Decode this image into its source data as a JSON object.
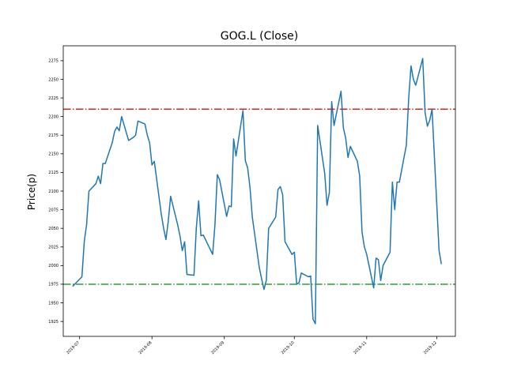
{
  "chart_data": {
    "type": "line",
    "title": "GOG.L (Close)",
    "xlabel": "",
    "ylabel": "Price(p)",
    "xlim": [
      "2019-06-24",
      "2019-12-09"
    ],
    "ylim": [
      1905,
      2295
    ],
    "yticks": [
      1925,
      1950,
      1975,
      2000,
      2025,
      2050,
      2075,
      2100,
      2125,
      2150,
      2175,
      2200,
      2225,
      2250,
      2275
    ],
    "xticks": [
      "2019-07",
      "2019-08",
      "2019-09",
      "2019-10",
      "2019-11",
      "2019-12"
    ],
    "grid": false,
    "series": [
      {
        "color": "#1f77b4",
        "x": [
          "2019-06-28",
          "2019-07-02",
          "2019-07-03",
          "2019-07-04",
          "2019-07-05",
          "2019-07-08",
          "2019-07-09",
          "2019-07-10",
          "2019-07-11",
          "2019-07-12",
          "2019-07-15",
          "2019-07-16",
          "2019-07-17",
          "2019-07-18",
          "2019-07-19",
          "2019-07-22",
          "2019-07-23",
          "2019-07-24",
          "2019-07-25",
          "2019-07-26",
          "2019-07-29",
          "2019-07-30",
          "2019-07-31",
          "2019-08-01",
          "2019-08-02",
          "2019-08-05",
          "2019-08-06",
          "2019-08-07",
          "2019-08-08",
          "2019-08-09",
          "2019-08-12",
          "2019-08-13",
          "2019-08-14",
          "2019-08-15",
          "2019-08-16",
          "2019-08-19",
          "2019-08-20",
          "2019-08-21",
          "2019-08-22",
          "2019-08-23",
          "2019-08-27",
          "2019-08-28",
          "2019-08-29",
          "2019-08-30",
          "2019-09-02",
          "2019-09-03",
          "2019-09-04",
          "2019-09-05",
          "2019-09-06",
          "2019-09-09",
          "2019-09-10",
          "2019-09-11",
          "2019-09-12",
          "2019-09-13",
          "2019-09-16",
          "2019-09-17",
          "2019-09-18",
          "2019-09-19",
          "2019-09-20",
          "2019-09-23",
          "2019-09-24",
          "2019-09-25",
          "2019-09-26",
          "2019-09-27",
          "2019-09-30",
          "2019-10-01",
          "2019-10-02",
          "2019-10-03",
          "2019-10-04",
          "2019-10-07",
          "2019-10-08",
          "2019-10-09",
          "2019-10-10",
          "2019-10-11",
          "2019-10-14",
          "2019-10-15",
          "2019-10-16",
          "2019-10-17",
          "2019-10-18",
          "2019-10-21",
          "2019-10-22",
          "2019-10-23",
          "2019-10-24",
          "2019-10-25",
          "2019-10-28",
          "2019-10-29",
          "2019-10-30",
          "2019-10-31",
          "2019-11-01",
          "2019-11-04",
          "2019-11-05",
          "2019-11-06",
          "2019-11-07",
          "2019-11-08",
          "2019-11-11",
          "2019-11-12",
          "2019-11-13",
          "2019-11-14",
          "2019-11-15",
          "2019-11-18",
          "2019-11-19",
          "2019-11-20",
          "2019-11-21",
          "2019-11-22",
          "2019-11-25",
          "2019-11-26",
          "2019-11-27",
          "2019-11-28",
          "2019-11-29",
          "2019-12-02",
          "2019-12-03"
        ],
        "y": [
          1972,
          1985,
          2032,
          2055,
          2100,
          2110,
          2120,
          2110,
          2137,
          2137,
          2165,
          2180,
          2186,
          2181,
          2200,
          2168,
          2170,
          2172,
          2175,
          2194,
          2190,
          2175,
          2165,
          2135,
          2140,
          2069,
          2050,
          2035,
          2060,
          2093,
          2055,
          2040,
          2020,
          2032,
          1988,
          1987,
          2050,
          2087,
          2040,
          2041,
          2015,
          2055,
          2122,
          2115,
          2066,
          2080,
          2079,
          2170,
          2147,
          2208,
          2141,
          2131,
          2105,
          2065,
          1997,
          1982,
          1968,
          1980,
          2050,
          2065,
          2102,
          2106,
          2095,
          2032,
          2015,
          2018,
          1975,
          1977,
          1990,
          1985,
          1986,
          1928,
          1922,
          2188,
          2124,
          2081,
          2098,
          2220,
          2188,
          2234,
          2185,
          2171,
          2145,
          2160,
          2140,
          2120,
          2045,
          2025,
          2015,
          1970,
          2010,
          2008,
          1980,
          2000,
          2018,
          2112,
          2075,
          2112,
          2112,
          2162,
          2225,
          2268,
          2250,
          2242,
          2278,
          2206,
          2187,
          2195,
          2210,
          2020,
          2002
        ]
      }
    ],
    "hlines": [
      {
        "y": 2210,
        "color": "#d62728",
        "style": "dashdot"
      },
      {
        "y": 1975,
        "color": "#2ca02c",
        "style": "dashdot"
      }
    ]
  }
}
